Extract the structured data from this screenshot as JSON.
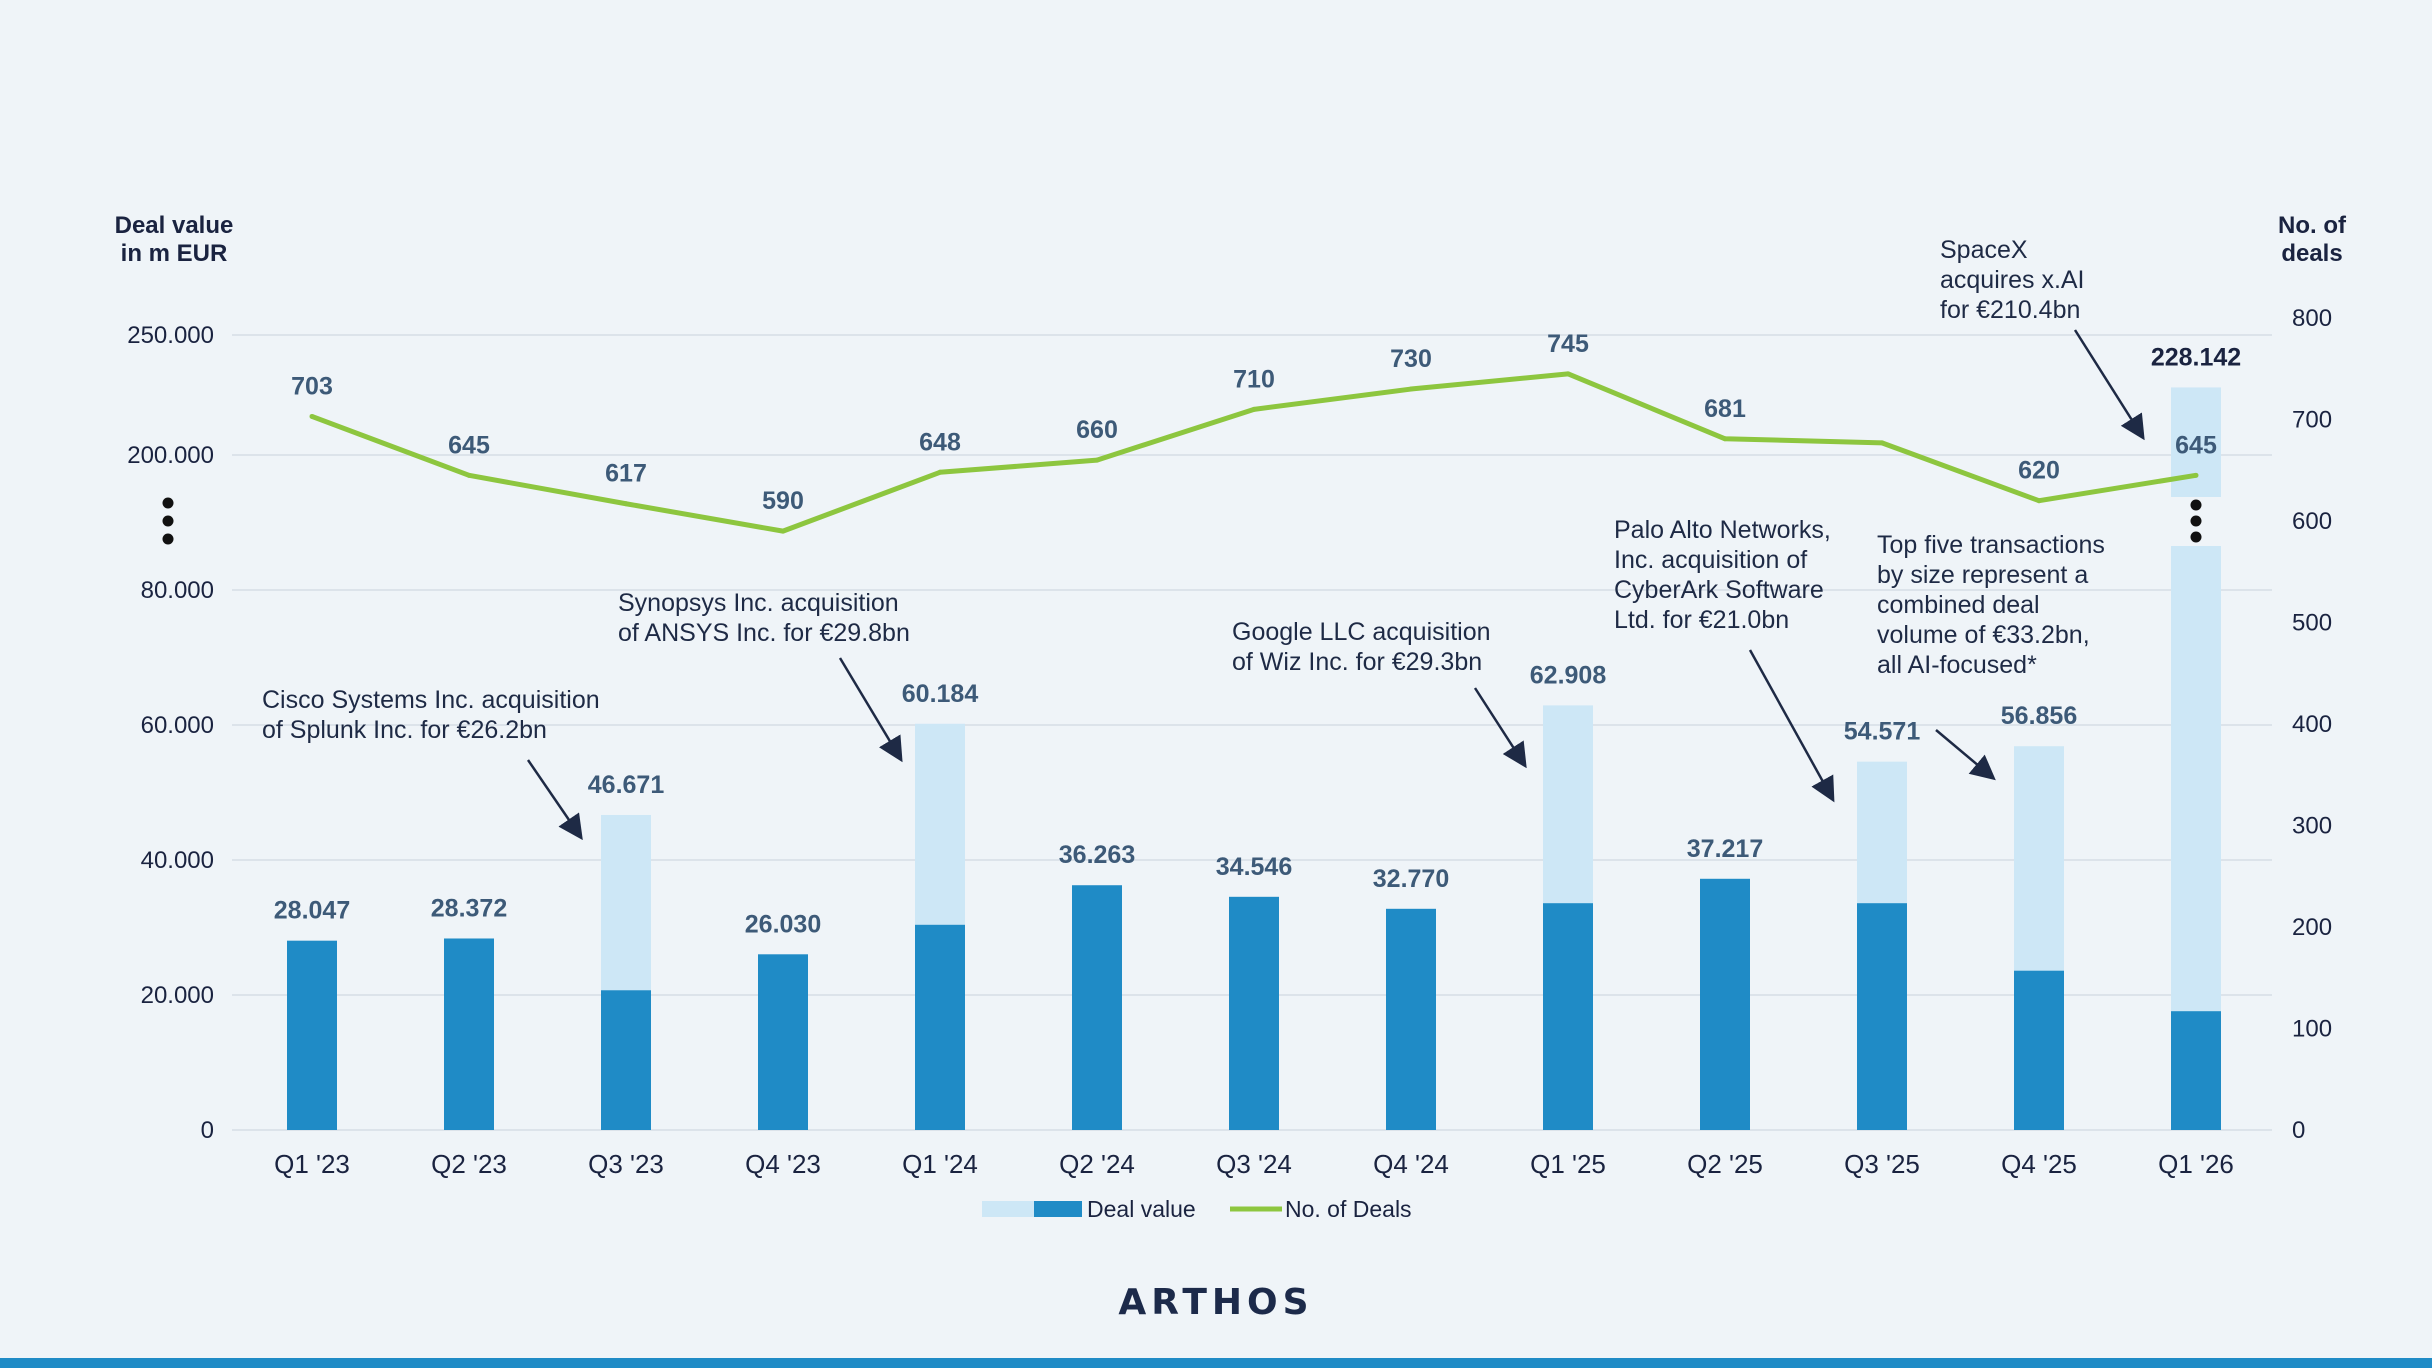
{
  "colors": {
    "background": "#eff4f8",
    "bar_dark": "#1f8bc6",
    "bar_light": "#cde7f6",
    "line": "#8dc63f",
    "label_blue": "#3d5a78",
    "axis_text": "#1a2340",
    "grid": "#d5dde6",
    "annotation": "#1e2a45",
    "brand_bar": "#1f8bc6",
    "logo": "#1c2a4a"
  },
  "chart_data": {
    "type": "bar",
    "categories": [
      "Q1 '23",
      "Q2 '23",
      "Q3 '23",
      "Q4 '23",
      "Q1 '24",
      "Q2 '24",
      "Q3 '24",
      "Q4 '24",
      "Q1 '25",
      "Q2 '25",
      "Q3 '25",
      "Q4 '25",
      "Q1 '26"
    ],
    "series": [
      {
        "name": "Deal value",
        "kind": "bar_base",
        "axis": "left",
        "values": [
          28047,
          28372,
          20700,
          26030,
          30400,
          36263,
          34546,
          32770,
          33600,
          37217,
          33600,
          23600,
          17600
        ]
      },
      {
        "name": "Deal value",
        "kind": "bar_top_total",
        "axis": "left",
        "values": [
          null,
          null,
          46671,
          null,
          60184,
          null,
          null,
          null,
          62908,
          null,
          54571,
          56856,
          228142
        ]
      },
      {
        "name": "No. of Deals",
        "kind": "line",
        "axis": "right",
        "values": [
          703,
          645,
          617,
          590,
          648,
          660,
          710,
          730,
          745,
          681,
          677,
          620,
          645
        ]
      }
    ],
    "bar_labels": [
      "28.047",
      "28.372",
      "46.671",
      "26.030",
      "60.184",
      "36.263",
      "34.546",
      "32.770",
      "62.908",
      "37.217",
      "54.571",
      "56.856",
      "228.142"
    ],
    "line_labels": [
      "703",
      "645",
      "617",
      "590",
      "648",
      "660",
      "710",
      "730",
      "745",
      "681",
      "",
      "620",
      "645"
    ],
    "y_left": {
      "title_line1": "Deal value",
      "title_line2": "in m EUR",
      "ticks": [
        "0",
        "20.000",
        "40.000",
        "60.000",
        "80.000",
        "200.000",
        "250.000"
      ],
      "range_lower": [
        0,
        80000
      ],
      "range_upper": [
        200000,
        250000
      ],
      "broken": true
    },
    "y_right": {
      "title_line1": "No. of",
      "title_line2": "deals",
      "ticks": [
        "0",
        "100",
        "200",
        "300",
        "400",
        "500",
        "600",
        "700",
        "800"
      ],
      "range": [
        0,
        800
      ]
    },
    "legend": {
      "items": [
        "Deal value",
        "No. of Deals"
      ],
      "position": "bottom-center"
    },
    "annotations": [
      {
        "lines": [
          "Cisco Systems Inc. acquisition",
          "of Splunk Inc. for €26.2bn"
        ],
        "category": "Q3 '23"
      },
      {
        "lines": [
          "Synopsys Inc. acquisition",
          "of ANSYS Inc. for €29.8bn"
        ],
        "category": "Q1 '24"
      },
      {
        "lines": [
          "Google LLC acquisition",
          "of Wiz Inc. for €29.3bn"
        ],
        "category": "Q1 '25"
      },
      {
        "lines": [
          "Palo Alto Networks,",
          "Inc. acquisition of",
          "CyberArk Software",
          "Ltd. for €21.0bn"
        ],
        "category": "Q3 '25"
      },
      {
        "lines": [
          "Top five transactions",
          "by size represent a",
          "combined deal",
          "volume of €33.2bn,",
          "all AI-focused*"
        ],
        "category": "Q4 '25"
      },
      {
        "lines": [
          "SpaceX",
          "acquires x.AI",
          "for €210.4bn"
        ],
        "category": "Q1 '26"
      }
    ],
    "grid": true
  },
  "footer": {
    "logo_text": "ARTHOS"
  }
}
